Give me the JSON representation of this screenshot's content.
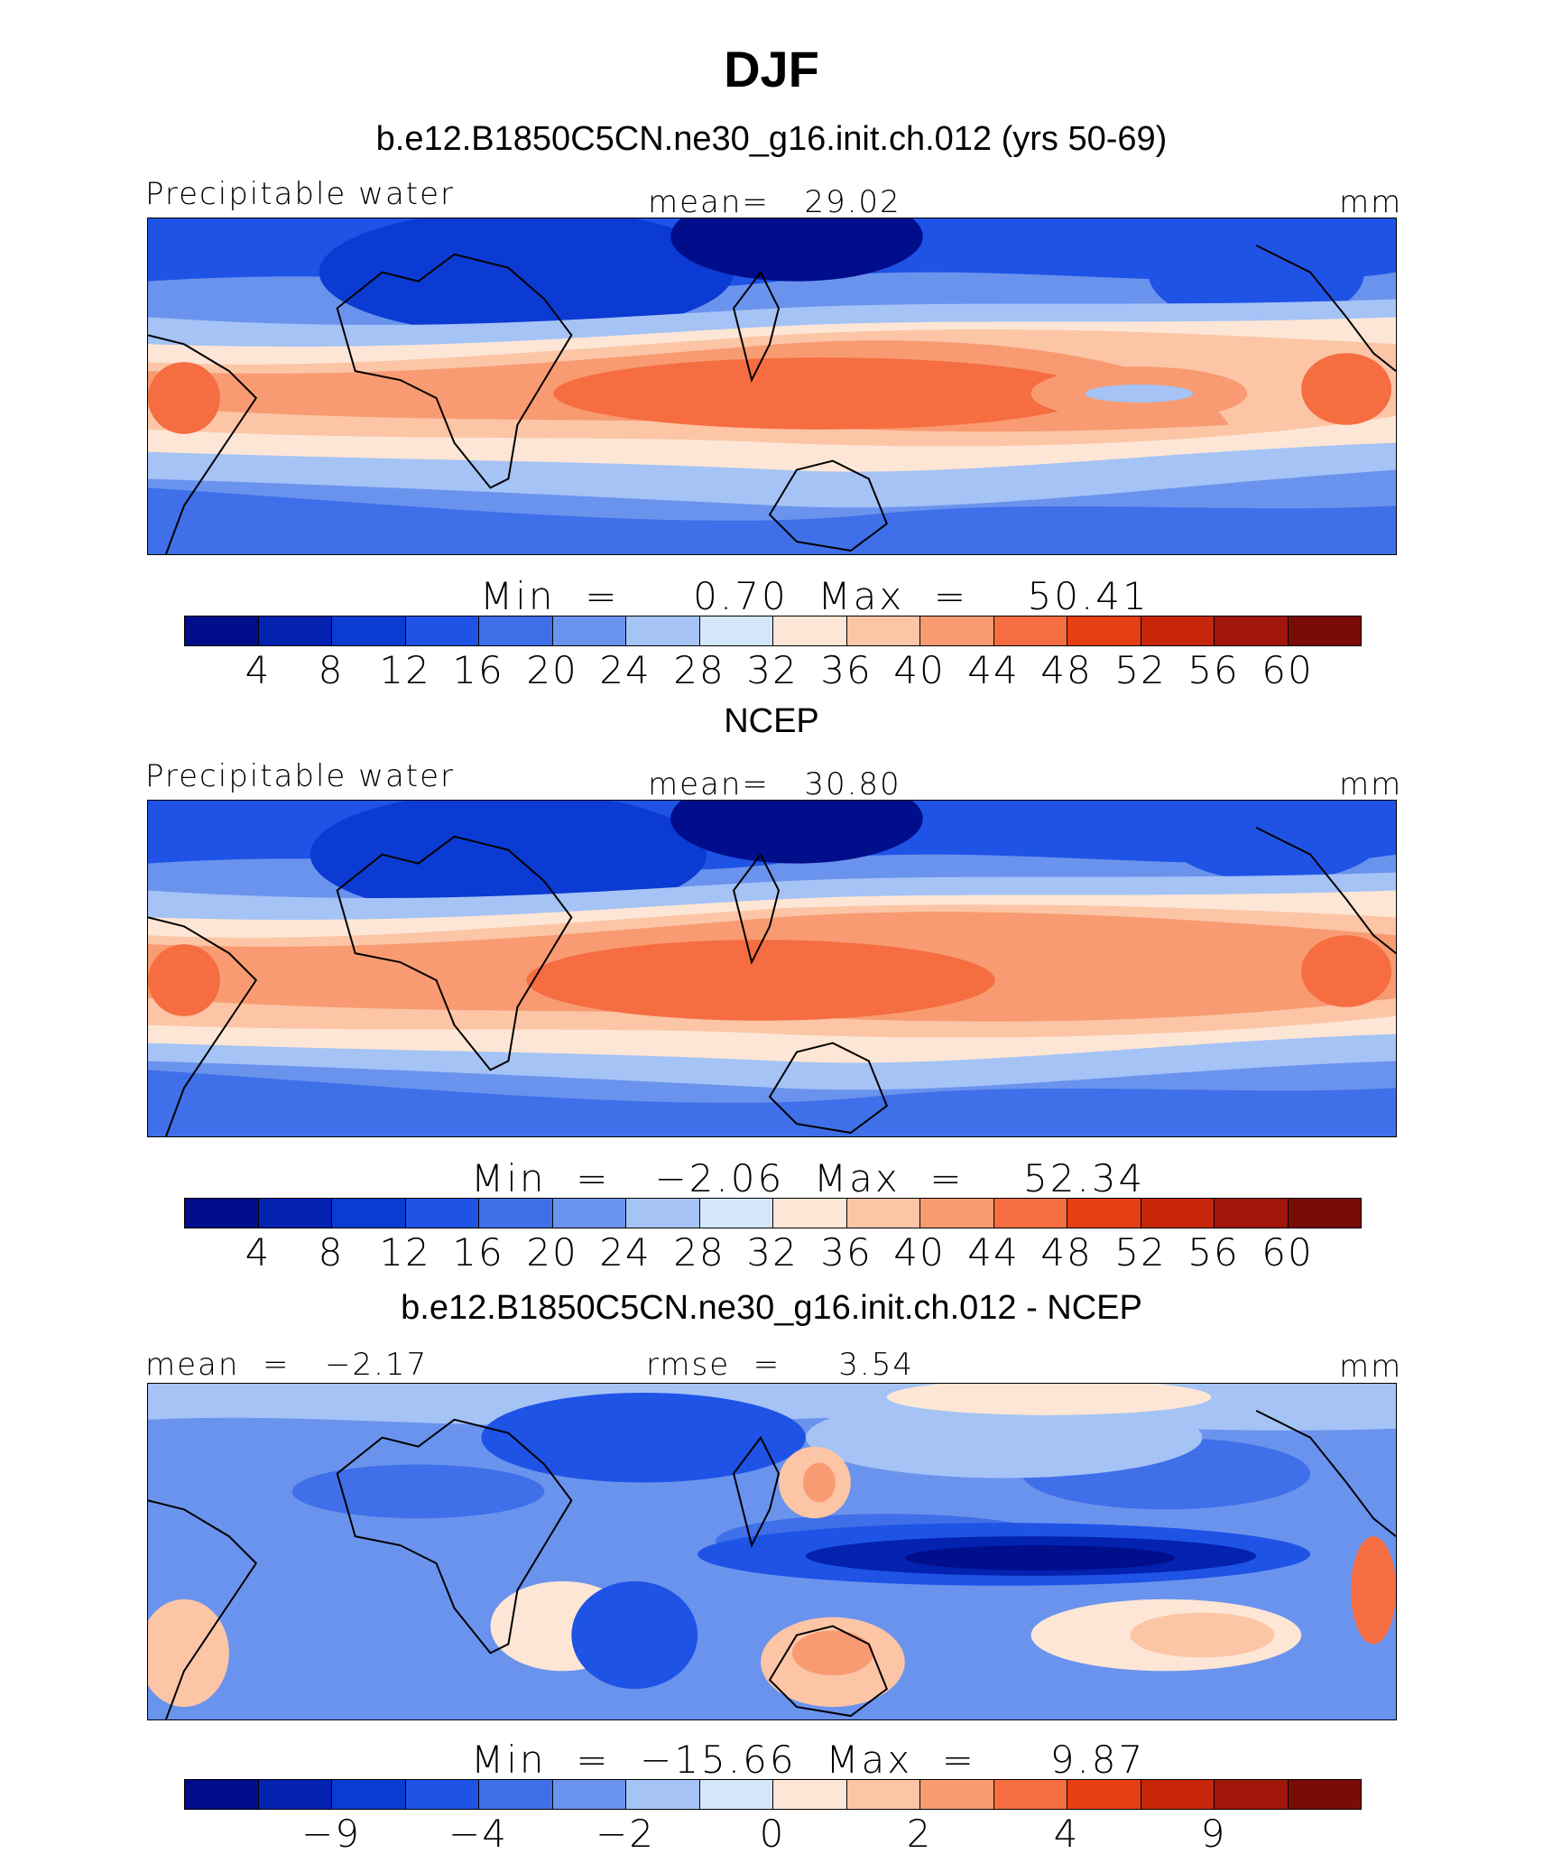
{
  "figure": {
    "title": "DJF"
  },
  "panels": [
    {
      "title": "b.e12.B1850C5CN.ne30_g16.init.ch.012 (yrs 50-69)",
      "left_label": "Precipitable water",
      "center_label": "mean=   29.02",
      "right_label": "mm",
      "min_max": "Min  =     0.70  Max  =    50.41",
      "colorbar_ticks": [
        "4",
        "8",
        "12",
        "16",
        "20",
        "24",
        "28",
        "32",
        "36",
        "40",
        "44",
        "48",
        "52",
        "56",
        "60"
      ]
    },
    {
      "title": "NCEP",
      "left_label": "Precipitable water",
      "center_label": "mean=   30.80",
      "right_label": "mm",
      "min_max": "Min  =   −2.06  Max  =    52.34",
      "colorbar_ticks": [
        "4",
        "8",
        "12",
        "16",
        "20",
        "24",
        "28",
        "32",
        "36",
        "40",
        "44",
        "48",
        "52",
        "56",
        "60"
      ]
    },
    {
      "title": "b.e12.B1850C5CN.ne30_g16.init.ch.012 - NCEP",
      "left_label": "mean  =   −2.17",
      "center_label": "rmse  =     3.54",
      "right_label": "mm",
      "min_max": "Min  =  −15.66  Max  =     9.87",
      "colorbar_ticks": [
        "−9",
        "−4",
        "−2",
        "0",
        "2",
        "4",
        "9"
      ]
    }
  ],
  "colorbar_colors": [
    "#000e8c",
    "#0322b0",
    "#0b3bd2",
    "#1f53e6",
    "#3f6fe9",
    "#6a93ee",
    "#a5c3f5",
    "#d4e6fa",
    "#fde6d5",
    "#fbc5a6",
    "#f89b72",
    "#f56d41",
    "#e63f14",
    "#c8260a",
    "#a1160a",
    "#7a0c08"
  ],
  "icons": [
    "coastline-map"
  ]
}
